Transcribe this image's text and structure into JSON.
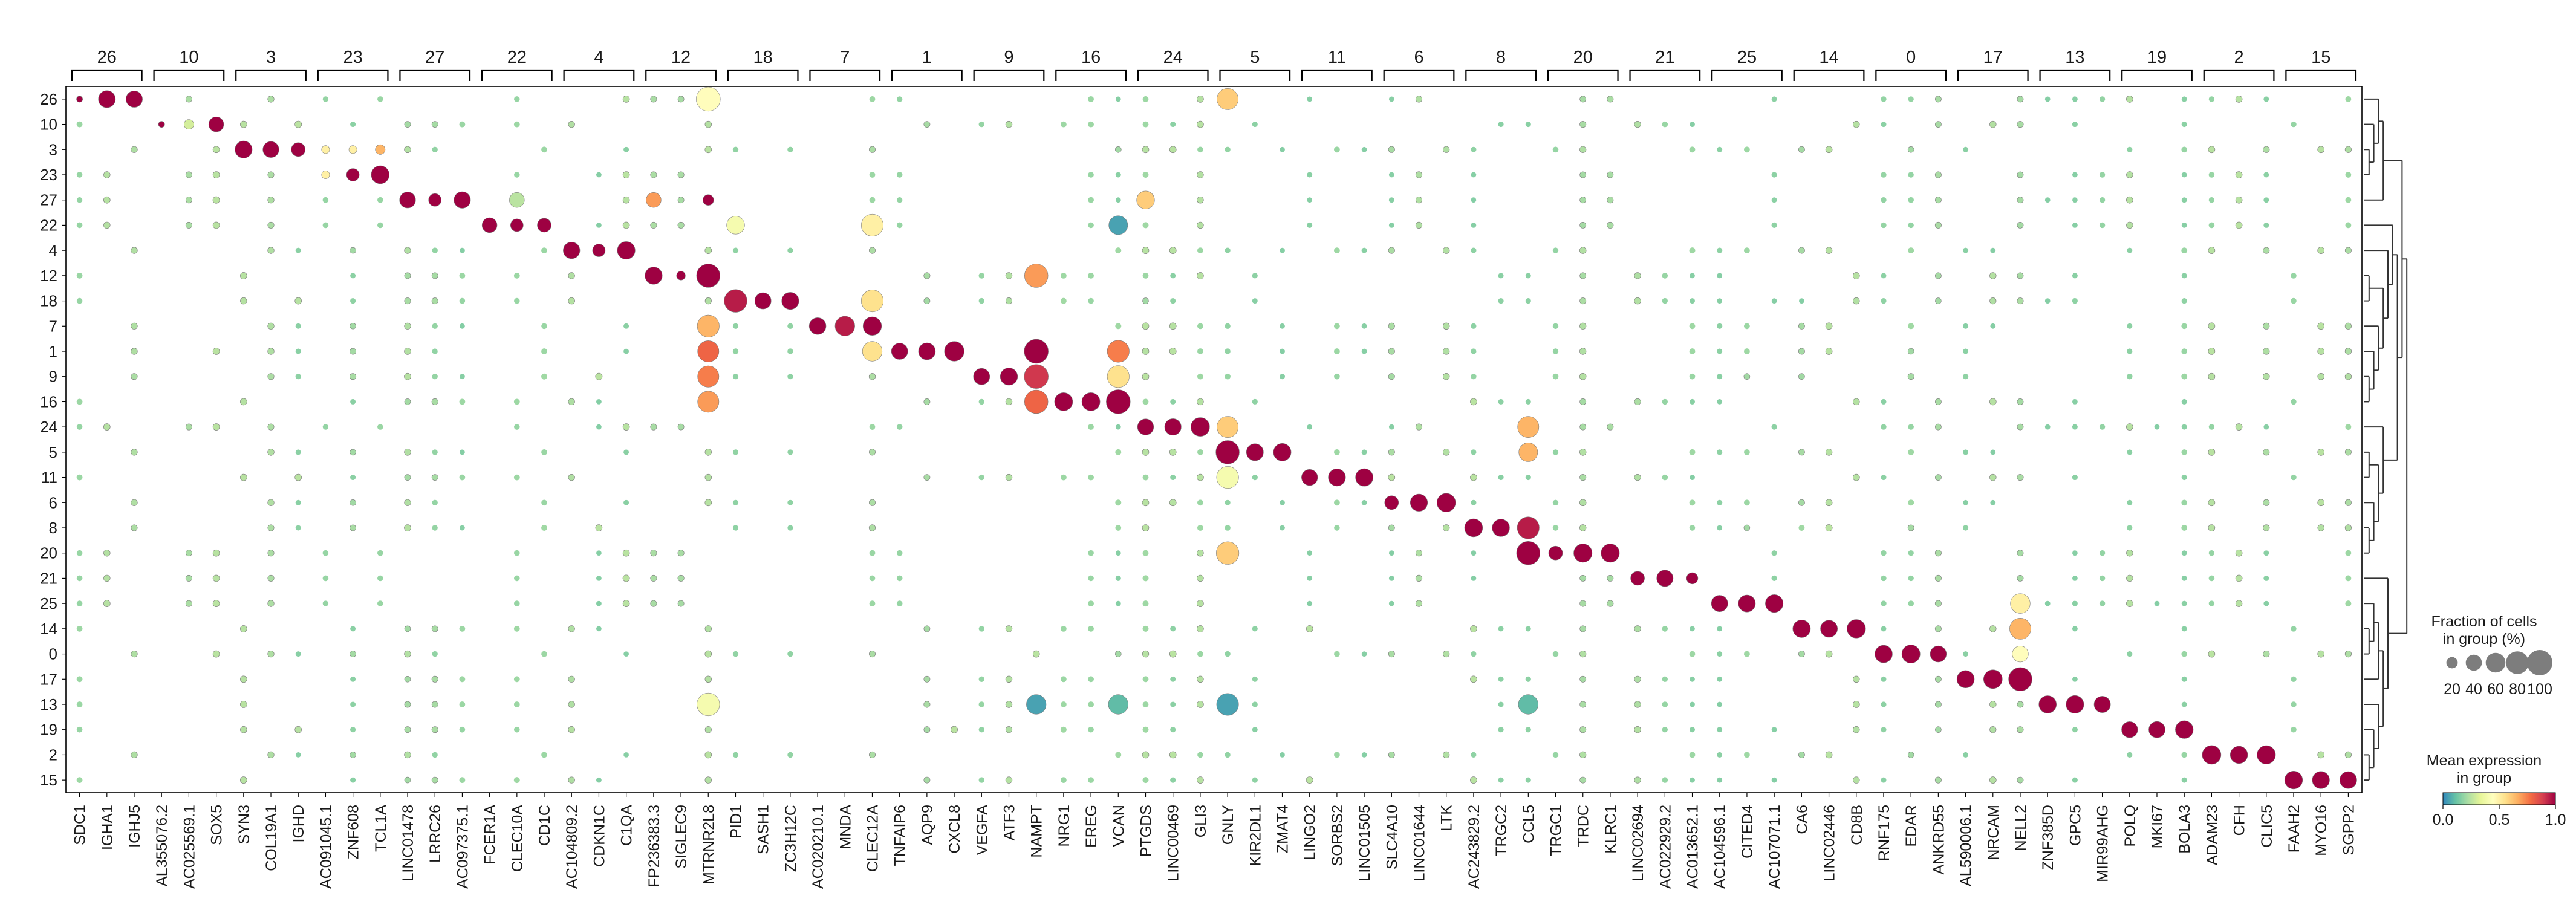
{
  "chart_data": {
    "type": "dotplot",
    "title": "",
    "xlabel": "",
    "ylabel": "",
    "group_order": [
      "26",
      "10",
      "3",
      "23",
      "27",
      "22",
      "4",
      "12",
      "18",
      "7",
      "1",
      "9",
      "16",
      "24",
      "5",
      "11",
      "6",
      "8",
      "20",
      "21",
      "25",
      "14",
      "0",
      "17",
      "13",
      "19",
      "2",
      "15"
    ],
    "gene_groups": [
      {
        "label": "26",
        "genes": [
          "SDC1",
          "IGHA1",
          "IGHJ5"
        ]
      },
      {
        "label": "10",
        "genes": [
          "AL355076.2",
          "AC025569.1",
          "SOX5"
        ]
      },
      {
        "label": "3",
        "genes": [
          "SYN3",
          "COL19A1",
          "IGHD"
        ]
      },
      {
        "label": "23",
        "genes": [
          "AC091045.1",
          "ZNF608",
          "TCL1A"
        ]
      },
      {
        "label": "27",
        "genes": [
          "LINC01478",
          "LRRC26",
          "AC097375.1"
        ]
      },
      {
        "label": "22",
        "genes": [
          "FCER1A",
          "CLEC10A",
          "CD1C"
        ]
      },
      {
        "label": "4",
        "genes": [
          "AC104809.2",
          "CDKN1C",
          "C1QA"
        ]
      },
      {
        "label": "12",
        "genes": [
          "FP236383.3",
          "SIGLEC9",
          "MTRNR2L8"
        ]
      },
      {
        "label": "18",
        "genes": [
          "PID1",
          "SASH1",
          "ZC3H12C"
        ]
      },
      {
        "label": "7",
        "genes": [
          "AC020210.1",
          "MNDA",
          "CLEC12A"
        ]
      },
      {
        "label": "1",
        "genes": [
          "TNFAIP6",
          "AQP9",
          "CXCL8"
        ]
      },
      {
        "label": "9",
        "genes": [
          "VEGFA",
          "ATF3",
          "NAMPT"
        ]
      },
      {
        "label": "16",
        "genes": [
          "NRG1",
          "EREG",
          "VCAN"
        ]
      },
      {
        "label": "24",
        "genes": [
          "PTGDS",
          "LINC00469",
          "GLI3"
        ]
      },
      {
        "label": "5",
        "genes": [
          "GNLY",
          "KIR2DL1",
          "ZMAT4"
        ]
      },
      {
        "label": "11",
        "genes": [
          "LINGO2",
          "SORBS2",
          "LINC01505"
        ]
      },
      {
        "label": "6",
        "genes": [
          "SLC4A10",
          "LINC01644",
          "LTK"
        ]
      },
      {
        "label": "8",
        "genes": [
          "AC243829.2",
          "TRGC2",
          "CCL5"
        ]
      },
      {
        "label": "20",
        "genes": [
          "TRGC1",
          "TRDC",
          "KLRC1"
        ]
      },
      {
        "label": "21",
        "genes": [
          "LINC02694",
          "AC022929.2",
          "AC013652.1"
        ]
      },
      {
        "label": "25",
        "genes": [
          "AC104596.1",
          "CITED4",
          "AC107071.1"
        ]
      },
      {
        "label": "14",
        "genes": [
          "CA6",
          "LINC02446",
          "CD8B"
        ]
      },
      {
        "label": "0",
        "genes": [
          "RNF175",
          "EDAR",
          "ANKRD55"
        ]
      },
      {
        "label": "17",
        "genes": [
          "AL590006.1",
          "NRCAM",
          "NELL2"
        ]
      },
      {
        "label": "13",
        "genes": [
          "ZNF385D",
          "GPC5",
          "MIR99AHG"
        ]
      },
      {
        "label": "19",
        "genes": [
          "POLQ",
          "MKI67",
          "BOLA3"
        ]
      },
      {
        "label": "2",
        "genes": [
          "ADAM23",
          "CFH",
          "CLIC5"
        ]
      },
      {
        "label": "15",
        "genes": [
          "FAAH2",
          "MYO16",
          "SGPP2"
        ]
      }
    ],
    "notable": [
      {
        "gene": "SOX5",
        "group": "10",
        "frac": 35,
        "expr": 1.0
      },
      {
        "gene": "AC025569.1",
        "group": "10",
        "frac": 15,
        "expr": 0.3
      },
      {
        "gene": "AC091045.1",
        "group": "3",
        "frac": 10,
        "expr": 0.5
      },
      {
        "gene": "ZNF608",
        "group": "3",
        "frac": 10,
        "expr": 0.5
      },
      {
        "gene": "TCL1A",
        "group": "3",
        "frac": 15,
        "expr": 0.65
      },
      {
        "gene": "ZNF608",
        "group": "23",
        "frac": 25,
        "expr": 1.0
      },
      {
        "gene": "AC091045.1",
        "group": "23",
        "frac": 10,
        "expr": 0.5
      },
      {
        "gene": "CLEC10A",
        "group": "27",
        "frac": 35,
        "expr": 0.25
      },
      {
        "gene": "FP236383.3",
        "group": "27",
        "frac": 35,
        "expr": 0.7
      },
      {
        "gene": "MTRNR2L8",
        "group": "26",
        "frac": 90,
        "expr": 0.45
      },
      {
        "gene": "MTRNR2L8",
        "group": "12",
        "frac": 85,
        "expr": 1.0
      },
      {
        "gene": "MTRNR2L8",
        "group": "7",
        "frac": 75,
        "expr": 0.65
      },
      {
        "gene": "MTRNR2L8",
        "group": "1",
        "frac": 70,
        "expr": 0.8
      },
      {
        "gene": "MTRNR2L8",
        "group": "9",
        "frac": 70,
        "expr": 0.75
      },
      {
        "gene": "MTRNR2L8",
        "group": "16",
        "frac": 70,
        "expr": 0.7
      },
      {
        "gene": "MTRNR2L8",
        "group": "13",
        "frac": 80,
        "expr": 0.4
      },
      {
        "gene": "PID1",
        "group": "18",
        "frac": 80,
        "expr": 0.95
      },
      {
        "gene": "PID1",
        "group": "22",
        "frac": 50,
        "expr": 0.4
      },
      {
        "gene": "CLEC12A",
        "group": "22",
        "frac": 75,
        "expr": 0.5
      },
      {
        "gene": "CLEC12A",
        "group": "18",
        "frac": 75,
        "expr": 0.55
      },
      {
        "gene": "CLEC12A",
        "group": "1",
        "frac": 60,
        "expr": 0.55
      },
      {
        "gene": "MNDA",
        "group": "7",
        "frac": 60,
        "expr": 0.95
      },
      {
        "gene": "CXCL8",
        "group": "1",
        "frac": 60,
        "expr": 1.0
      },
      {
        "gene": "NAMPT",
        "group": "1",
        "frac": 90,
        "expr": 1.0
      },
      {
        "gene": "NAMPT",
        "group": "9",
        "frac": 90,
        "expr": 0.9
      },
      {
        "gene": "NAMPT",
        "group": "16",
        "frac": 85,
        "expr": 0.8
      },
      {
        "gene": "NAMPT",
        "group": "12",
        "frac": 85,
        "expr": 0.7
      },
      {
        "gene": "NAMPT",
        "group": "13",
        "frac": 60,
        "expr": 0.05
      },
      {
        "gene": "VCAN",
        "group": "16",
        "frac": 90,
        "expr": 1.0
      },
      {
        "gene": "VCAN",
        "group": "1",
        "frac": 75,
        "expr": 0.75
      },
      {
        "gene": "VCAN",
        "group": "9",
        "frac": 75,
        "expr": 0.55
      },
      {
        "gene": "VCAN",
        "group": "13",
        "frac": 60,
        "expr": 0.1
      },
      {
        "gene": "VCAN",
        "group": "22",
        "frac": 55,
        "expr": 0.05
      },
      {
        "gene": "PTGDS",
        "group": "27",
        "frac": 50,
        "expr": 0.6
      },
      {
        "gene": "GNLY",
        "group": "5",
        "frac": 85,
        "expr": 1.0
      },
      {
        "gene": "GNLY",
        "group": "26",
        "frac": 70,
        "expr": 0.6
      },
      {
        "gene": "GNLY",
        "group": "24",
        "frac": 70,
        "expr": 0.6
      },
      {
        "gene": "GNLY",
        "group": "11",
        "frac": 75,
        "expr": 0.4
      },
      {
        "gene": "GNLY",
        "group": "20",
        "frac": 80,
        "expr": 0.6
      },
      {
        "gene": "GNLY",
        "group": "13",
        "frac": 75,
        "expr": 0.05
      },
      {
        "gene": "CCL5",
        "group": "8",
        "frac": 75,
        "expr": 0.95
      },
      {
        "gene": "CCL5",
        "group": "20",
        "frac": 85,
        "expr": 1.0
      },
      {
        "gene": "CCL5",
        "group": "24",
        "frac": 70,
        "expr": 0.65
      },
      {
        "gene": "CCL5",
        "group": "5",
        "frac": 55,
        "expr": 0.65
      },
      {
        "gene": "CCL5",
        "group": "13",
        "frac": 60,
        "expr": 0.1
      },
      {
        "gene": "NELL2",
        "group": "17",
        "frac": 85,
        "expr": 1.0
      },
      {
        "gene": "NELL2",
        "group": "14",
        "frac": 70,
        "expr": 0.65
      },
      {
        "gene": "NELL2",
        "group": "25",
        "frac": 60,
        "expr": 0.5
      },
      {
        "gene": "NELL2",
        "group": "0",
        "frac": 40,
        "expr": 0.45
      }
    ],
    "colormap": "Spectral_r",
    "legend_size": {
      "title_lines": [
        "Fraction of cells",
        "in group (%)"
      ],
      "ticks": [
        "20",
        "40",
        "60",
        "80",
        "100"
      ]
    },
    "legend_color": {
      "title_lines": [
        "Mean expression",
        "in group"
      ],
      "ticks": [
        "0.0",
        "0.5",
        "1.0"
      ],
      "colors": [
        "#3288bd",
        "#66c2a5",
        "#abdda4",
        "#e6f598",
        "#ffffbf",
        "#fee08b",
        "#fdae61",
        "#f46d43",
        "#d53e4f",
        "#9e0142"
      ]
    },
    "dendrogram_side": "right"
  }
}
